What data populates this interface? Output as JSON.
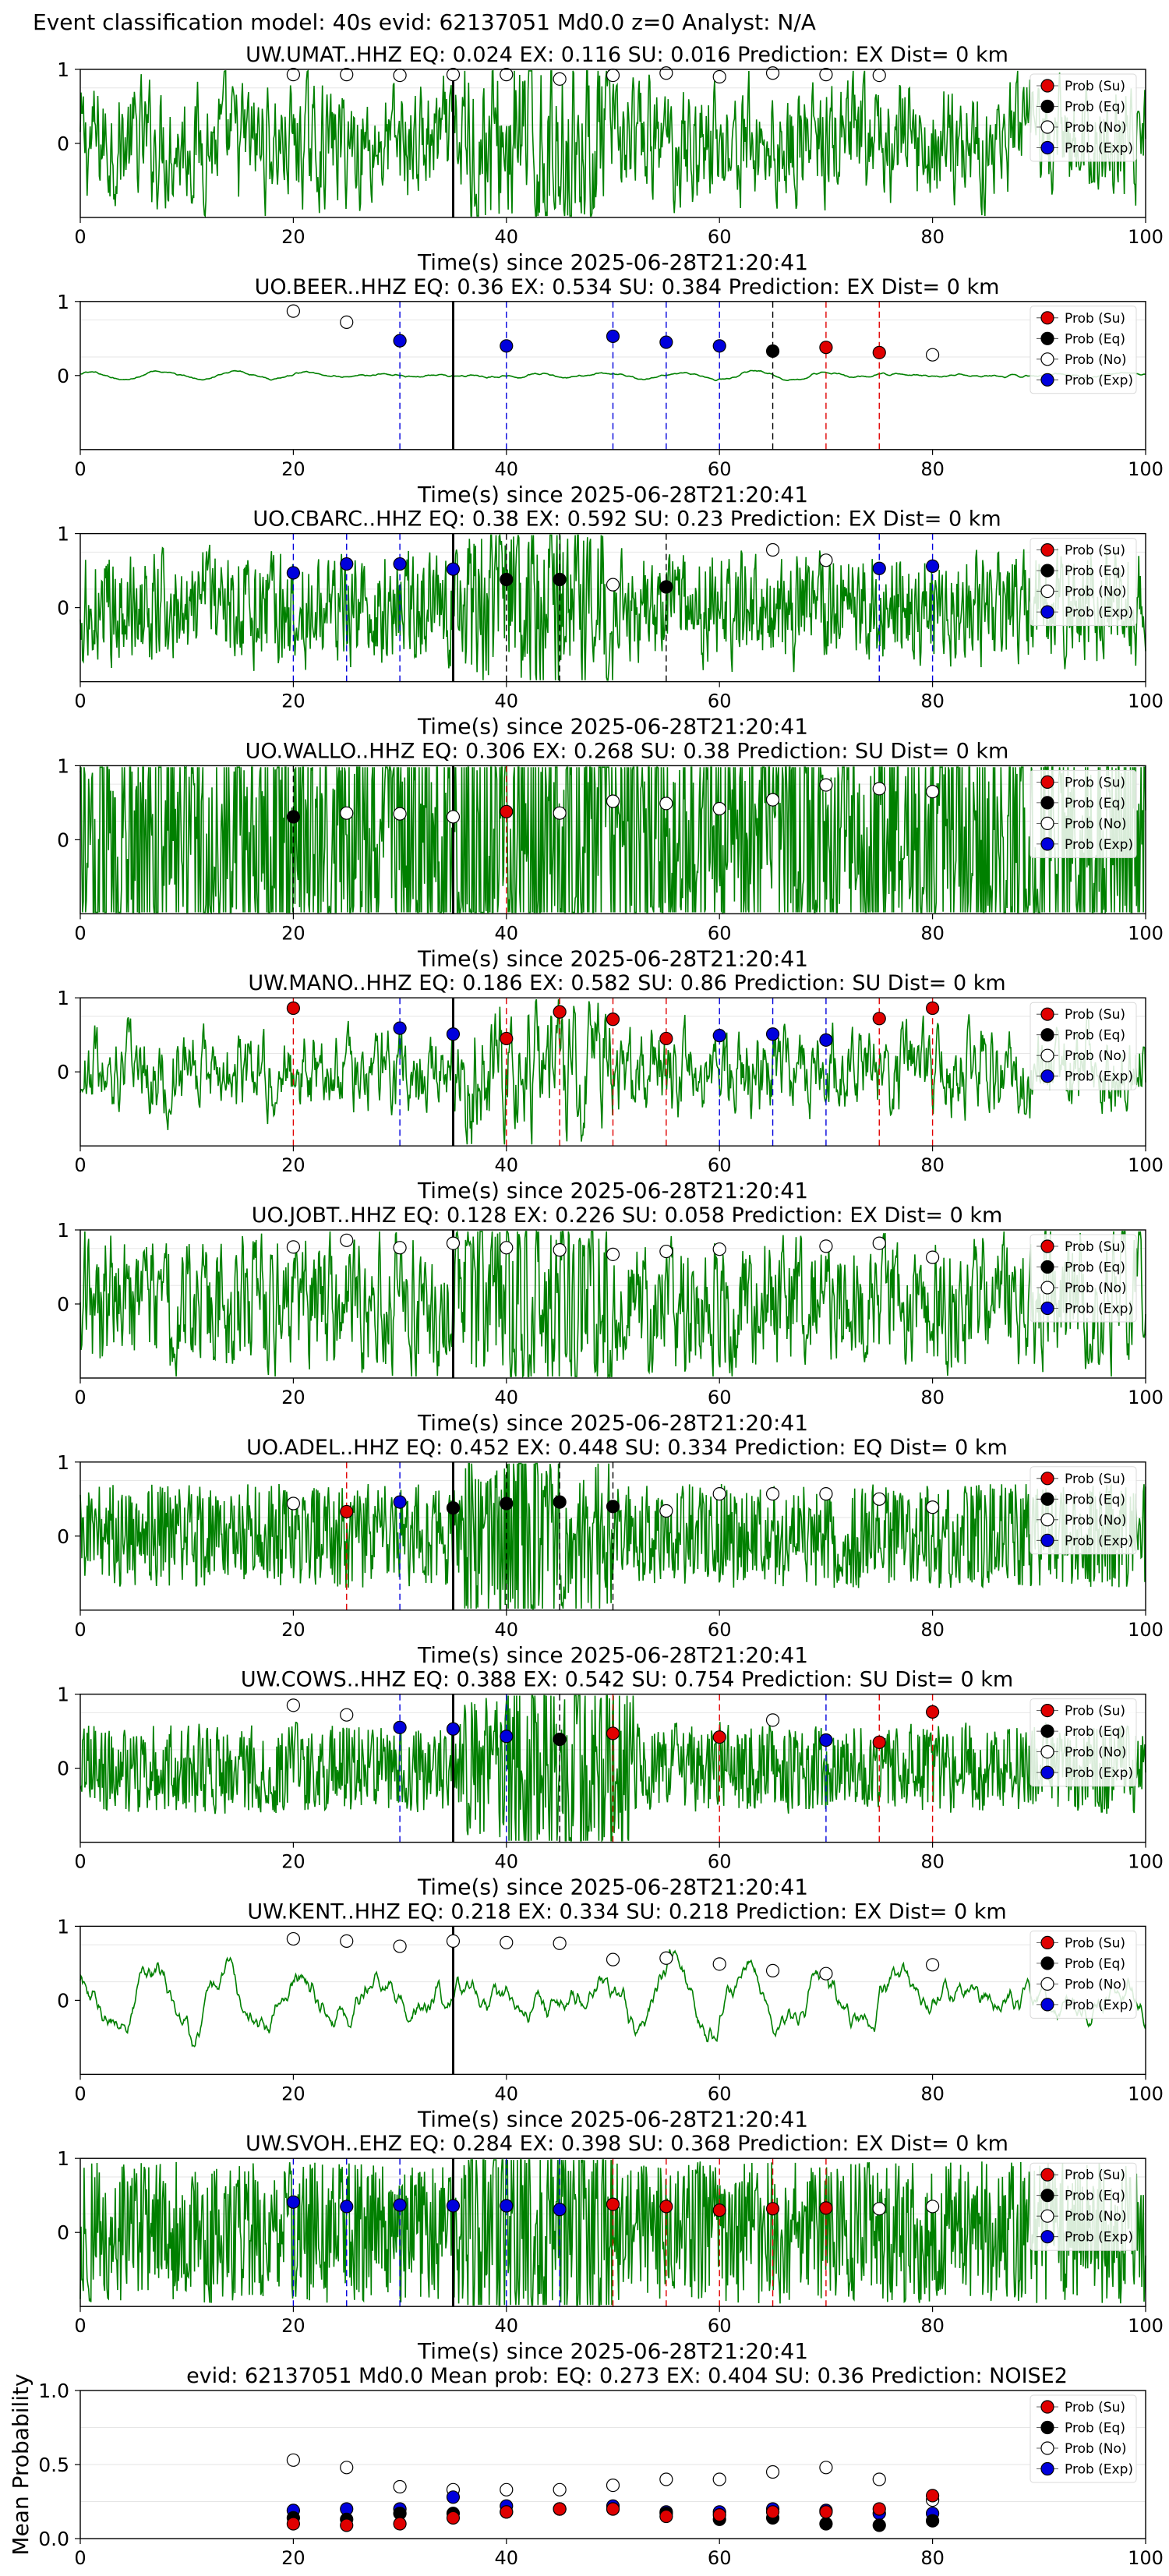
{
  "figure_title": "Event classification model: 40s evid: 62137051 Md0.0 z=0 Analyst: N/A",
  "legend": [
    {
      "label": "Prob (Su)",
      "color": "#e00000",
      "hollow": false
    },
    {
      "label": "Prob (Eq)",
      "color": "#000000",
      "hollow": false
    },
    {
      "label": "Prob (No)",
      "color": "#ffffff",
      "hollow": true
    },
    {
      "label": "Prob (Exp)",
      "color": "#0000dd",
      "hollow": false
    }
  ],
  "colors": {
    "trace": "#008000",
    "su": "#e00000",
    "eq": "#000000",
    "exp": "#0000dd",
    "origin_line": "#000000"
  },
  "chart_data": [
    {
      "type": "line",
      "station": "UW.UMAT..HHZ",
      "title": "UW.UMAT..HHZ   EQ: 0.024  EX: 0.116  SU: 0.016   Prediction: EX    Dist= 0 km",
      "xlabel": "Time(s) since 2025-06-28T21:20:41",
      "xlim": [
        0,
        100
      ],
      "ylim": [
        -1,
        1
      ],
      "x_ticks": [
        0,
        20,
        40,
        60,
        80,
        100
      ],
      "y_ticks": [
        0,
        1
      ],
      "origin_time": 35,
      "amp": 0.38,
      "smooth": 0.35,
      "points": [
        {
          "x": 20,
          "y": 0.93,
          "c": "no"
        },
        {
          "x": 25,
          "y": 0.93,
          "c": "no"
        },
        {
          "x": 30,
          "y": 0.92,
          "c": "no"
        },
        {
          "x": 35,
          "y": 0.93,
          "c": "no"
        },
        {
          "x": 40,
          "y": 0.93,
          "c": "no"
        },
        {
          "x": 45,
          "y": 0.87,
          "c": "no"
        },
        {
          "x": 50,
          "y": 0.92,
          "c": "no"
        },
        {
          "x": 55,
          "y": 0.95,
          "c": "no"
        },
        {
          "x": 60,
          "y": 0.9,
          "c": "no"
        },
        {
          "x": 65,
          "y": 0.95,
          "c": "no"
        },
        {
          "x": 70,
          "y": 0.93,
          "c": "no"
        },
        {
          "x": 75,
          "y": 0.92,
          "c": "no"
        }
      ]
    },
    {
      "type": "line",
      "station": "UO.BEER..HHZ",
      "title": "UO.BEER..HHZ   EQ: 0.36  EX: 0.534  SU: 0.384   Prediction: EX    Dist= 0 km",
      "xlabel": "Time(s) since 2025-06-28T21:20:41",
      "xlim": [
        0,
        100
      ],
      "ylim": [
        -1,
        1
      ],
      "x_ticks": [
        0,
        20,
        40,
        60,
        80,
        100
      ],
      "y_ticks": [
        0,
        1
      ],
      "origin_time": 35,
      "amp": 0.05,
      "smooth": 0.9,
      "points": [
        {
          "x": 20,
          "y": 0.87,
          "c": "no"
        },
        {
          "x": 25,
          "y": 0.72,
          "c": "no"
        },
        {
          "x": 30,
          "y": 0.47,
          "c": "exp"
        },
        {
          "x": 40,
          "y": 0.4,
          "c": "exp"
        },
        {
          "x": 50,
          "y": 0.53,
          "c": "exp"
        },
        {
          "x": 55,
          "y": 0.45,
          "c": "exp"
        },
        {
          "x": 60,
          "y": 0.4,
          "c": "exp"
        },
        {
          "x": 65,
          "y": 0.33,
          "c": "eq"
        },
        {
          "x": 70,
          "y": 0.38,
          "c": "su"
        },
        {
          "x": 75,
          "y": 0.31,
          "c": "su"
        },
        {
          "x": 80,
          "y": 0.28,
          "c": "no"
        }
      ]
    },
    {
      "type": "line",
      "station": "UO.CBARC..HHZ",
      "title": "UO.CBARC..HHZ   EQ: 0.38  EX: 0.592  SU: 0.23   Prediction: EX    Dist= 0 km",
      "xlabel": "Time(s) since 2025-06-28T21:20:41",
      "xlim": [
        0,
        100
      ],
      "ylim": [
        -1,
        1
      ],
      "x_ticks": [
        0,
        20,
        40,
        60,
        80,
        100
      ],
      "y_ticks": [
        0,
        1
      ],
      "origin_time": 35,
      "amp": 0.3,
      "smooth": 0.2,
      "points": [
        {
          "x": 20,
          "y": 0.47,
          "c": "exp"
        },
        {
          "x": 25,
          "y": 0.59,
          "c": "exp"
        },
        {
          "x": 30,
          "y": 0.59,
          "c": "exp"
        },
        {
          "x": 35,
          "y": 0.52,
          "c": "exp"
        },
        {
          "x": 40,
          "y": 0.38,
          "c": "eq"
        },
        {
          "x": 45,
          "y": 0.38,
          "c": "eq"
        },
        {
          "x": 50,
          "y": 0.31,
          "c": "no"
        },
        {
          "x": 55,
          "y": 0.28,
          "c": "eq"
        },
        {
          "x": 65,
          "y": 0.78,
          "c": "no"
        },
        {
          "x": 70,
          "y": 0.64,
          "c": "no"
        },
        {
          "x": 75,
          "y": 0.53,
          "c": "exp"
        },
        {
          "x": 80,
          "y": 0.56,
          "c": "exp"
        }
      ]
    },
    {
      "type": "line",
      "station": "UO.WALLO..HHZ",
      "title": "UO.WALLO..HHZ   EQ: 0.306  EX: 0.268  SU: 0.38   Prediction: SU    Dist= 0 km",
      "xlabel": "Time(s) since 2025-06-28T21:20:41",
      "xlim": [
        0,
        100
      ],
      "ylim": [
        -1,
        1
      ],
      "x_ticks": [
        0,
        20,
        40,
        60,
        80,
        100
      ],
      "y_ticks": [
        0,
        1
      ],
      "origin_time": 35,
      "amp": 0.55,
      "smooth": 0.0,
      "points": [
        {
          "x": 20,
          "y": 0.31,
          "c": "eq"
        },
        {
          "x": 25,
          "y": 0.36,
          "c": "no"
        },
        {
          "x": 30,
          "y": 0.35,
          "c": "no"
        },
        {
          "x": 35,
          "y": 0.31,
          "c": "no"
        },
        {
          "x": 40,
          "y": 0.38,
          "c": "su"
        },
        {
          "x": 45,
          "y": 0.36,
          "c": "no"
        },
        {
          "x": 50,
          "y": 0.52,
          "c": "no"
        },
        {
          "x": 55,
          "y": 0.49,
          "c": "no"
        },
        {
          "x": 60,
          "y": 0.42,
          "c": "no"
        },
        {
          "x": 65,
          "y": 0.54,
          "c": "no"
        },
        {
          "x": 70,
          "y": 0.74,
          "c": "no"
        },
        {
          "x": 75,
          "y": 0.69,
          "c": "no"
        },
        {
          "x": 80,
          "y": 0.65,
          "c": "no"
        }
      ]
    },
    {
      "type": "line",
      "station": "UW.MANO..HHZ",
      "title": "UW.MANO..HHZ   EQ: 0.186  EX: 0.582  SU: 0.86   Prediction: SU    Dist= 0 km",
      "xlabel": "Time(s) since 2025-06-28T21:20:41",
      "xlim": [
        0,
        100
      ],
      "ylim": [
        -1,
        1
      ],
      "x_ticks": [
        0,
        20,
        40,
        60,
        80,
        100
      ],
      "y_ticks": [
        0,
        1
      ],
      "origin_time": 35,
      "amp": 0.3,
      "smooth": 0.45,
      "points": [
        {
          "x": 20,
          "y": 0.86,
          "c": "su"
        },
        {
          "x": 30,
          "y": 0.59,
          "c": "exp"
        },
        {
          "x": 35,
          "y": 0.51,
          "c": "exp"
        },
        {
          "x": 40,
          "y": 0.45,
          "c": "su"
        },
        {
          "x": 45,
          "y": 0.81,
          "c": "su"
        },
        {
          "x": 50,
          "y": 0.71,
          "c": "su"
        },
        {
          "x": 55,
          "y": 0.45,
          "c": "su"
        },
        {
          "x": 60,
          "y": 0.49,
          "c": "exp"
        },
        {
          "x": 65,
          "y": 0.51,
          "c": "exp"
        },
        {
          "x": 70,
          "y": 0.43,
          "c": "exp"
        },
        {
          "x": 75,
          "y": 0.72,
          "c": "su"
        },
        {
          "x": 80,
          "y": 0.86,
          "c": "su"
        }
      ]
    },
    {
      "type": "line",
      "station": "UO.JOBT..HHZ",
      "title": "UO.JOBT..HHZ   EQ: 0.128  EX: 0.226  SU: 0.058   Prediction: EX    Dist= 0 km",
      "xlabel": "Time(s) since 2025-06-28T21:20:41",
      "xlim": [
        0,
        100
      ],
      "ylim": [
        -1,
        1
      ],
      "x_ticks": [
        0,
        20,
        40,
        60,
        80,
        100
      ],
      "y_ticks": [
        0,
        1
      ],
      "origin_time": 35,
      "amp": 0.4,
      "smooth": 0.3,
      "points": [
        {
          "x": 20,
          "y": 0.77,
          "c": "no"
        },
        {
          "x": 25,
          "y": 0.86,
          "c": "no"
        },
        {
          "x": 30,
          "y": 0.76,
          "c": "no"
        },
        {
          "x": 35,
          "y": 0.82,
          "c": "no"
        },
        {
          "x": 40,
          "y": 0.76,
          "c": "no"
        },
        {
          "x": 45,
          "y": 0.73,
          "c": "no"
        },
        {
          "x": 50,
          "y": 0.67,
          "c": "no"
        },
        {
          "x": 55,
          "y": 0.71,
          "c": "no"
        },
        {
          "x": 60,
          "y": 0.74,
          "c": "no"
        },
        {
          "x": 70,
          "y": 0.78,
          "c": "no"
        },
        {
          "x": 75,
          "y": 0.82,
          "c": "no"
        },
        {
          "x": 80,
          "y": 0.63,
          "c": "no"
        }
      ]
    },
    {
      "type": "line",
      "station": "UO.ADEL..HHZ",
      "title": "UO.ADEL..HHZ   EQ: 0.452  EX: 0.448  SU: 0.334   Prediction: EQ    Dist= 0 km",
      "xlabel": "Time(s) since 2025-06-28T21:20:41",
      "xlim": [
        0,
        100
      ],
      "ylim": [
        -1,
        1
      ],
      "x_ticks": [
        0,
        20,
        40,
        60,
        80,
        100
      ],
      "y_ticks": [
        0,
        1
      ],
      "origin_time": 35,
      "amp": 0.22,
      "smooth": 0.0,
      "points": [
        {
          "x": 20,
          "y": 0.44,
          "c": "no"
        },
        {
          "x": 25,
          "y": 0.33,
          "c": "su"
        },
        {
          "x": 30,
          "y": 0.46,
          "c": "exp"
        },
        {
          "x": 35,
          "y": 0.38,
          "c": "eq"
        },
        {
          "x": 40,
          "y": 0.44,
          "c": "eq"
        },
        {
          "x": 45,
          "y": 0.46,
          "c": "eq"
        },
        {
          "x": 50,
          "y": 0.4,
          "c": "eq"
        },
        {
          "x": 55,
          "y": 0.34,
          "c": "no"
        },
        {
          "x": 60,
          "y": 0.57,
          "c": "no"
        },
        {
          "x": 65,
          "y": 0.57,
          "c": "no"
        },
        {
          "x": 70,
          "y": 0.57,
          "c": "no"
        },
        {
          "x": 75,
          "y": 0.5,
          "c": "no"
        },
        {
          "x": 80,
          "y": 0.39,
          "c": "no"
        }
      ]
    },
    {
      "type": "line",
      "station": "UW.COWS..HHZ",
      "title": "UW.COWS..HHZ   EQ: 0.388  EX: 0.542  SU: 0.754   Prediction: SU    Dist= 0 km",
      "xlabel": "Time(s) since 2025-06-28T21:20:41",
      "xlim": [
        0,
        100
      ],
      "ylim": [
        -1,
        1
      ],
      "x_ticks": [
        0,
        20,
        40,
        60,
        80,
        100
      ],
      "y_ticks": [
        0,
        1
      ],
      "origin_time": 35,
      "amp": 0.2,
      "smooth": 0.05,
      "points": [
        {
          "x": 20,
          "y": 0.85,
          "c": "no"
        },
        {
          "x": 25,
          "y": 0.72,
          "c": "no"
        },
        {
          "x": 30,
          "y": 0.55,
          "c": "exp"
        },
        {
          "x": 35,
          "y": 0.53,
          "c": "exp"
        },
        {
          "x": 40,
          "y": 0.43,
          "c": "exp"
        },
        {
          "x": 45,
          "y": 0.39,
          "c": "eq"
        },
        {
          "x": 50,
          "y": 0.47,
          "c": "su"
        },
        {
          "x": 60,
          "y": 0.42,
          "c": "su"
        },
        {
          "x": 65,
          "y": 0.65,
          "c": "no"
        },
        {
          "x": 70,
          "y": 0.38,
          "c": "exp"
        },
        {
          "x": 75,
          "y": 0.35,
          "c": "su"
        },
        {
          "x": 80,
          "y": 0.76,
          "c": "su"
        }
      ]
    },
    {
      "type": "line",
      "station": "UW.KENT..HHZ",
      "title": "UW.KENT..HHZ   EQ: 0.218  EX: 0.334  SU: 0.218   Prediction: EX    Dist= 0 km",
      "xlabel": "Time(s) since 2025-06-28T21:20:41",
      "xlim": [
        0,
        100
      ],
      "ylim": [
        -1,
        1
      ],
      "x_ticks": [
        0,
        20,
        40,
        60,
        80,
        100
      ],
      "y_ticks": [
        0,
        1
      ],
      "origin_time": 35,
      "amp": 0.42,
      "smooth": 0.85,
      "points": [
        {
          "x": 20,
          "y": 0.83,
          "c": "no"
        },
        {
          "x": 25,
          "y": 0.8,
          "c": "no"
        },
        {
          "x": 30,
          "y": 0.73,
          "c": "no"
        },
        {
          "x": 35,
          "y": 0.8,
          "c": "no"
        },
        {
          "x": 40,
          "y": 0.78,
          "c": "no"
        },
        {
          "x": 45,
          "y": 0.77,
          "c": "no"
        },
        {
          "x": 50,
          "y": 0.55,
          "c": "no"
        },
        {
          "x": 55,
          "y": 0.57,
          "c": "no"
        },
        {
          "x": 60,
          "y": 0.49,
          "c": "no"
        },
        {
          "x": 65,
          "y": 0.4,
          "c": "no"
        },
        {
          "x": 70,
          "y": 0.36,
          "c": "no"
        },
        {
          "x": 80,
          "y": 0.48,
          "c": "no"
        }
      ]
    },
    {
      "type": "line",
      "station": "UW.SVOH..EHZ",
      "title": "UW.SVOH..EHZ   EQ: 0.284  EX: 0.398  SU: 0.368   Prediction: EX    Dist= 0 km",
      "xlabel": "Time(s) since 2025-06-28T21:20:41",
      "xlim": [
        0,
        100
      ],
      "ylim": [
        -1,
        1
      ],
      "x_ticks": [
        0,
        20,
        40,
        60,
        80,
        100
      ],
      "y_ticks": [
        0,
        1
      ],
      "origin_time": 35,
      "amp": 0.3,
      "smooth": 0.0,
      "points": [
        {
          "x": 20,
          "y": 0.41,
          "c": "exp"
        },
        {
          "x": 25,
          "y": 0.35,
          "c": "exp"
        },
        {
          "x": 30,
          "y": 0.37,
          "c": "exp"
        },
        {
          "x": 35,
          "y": 0.36,
          "c": "exp"
        },
        {
          "x": 40,
          "y": 0.36,
          "c": "exp"
        },
        {
          "x": 45,
          "y": 0.31,
          "c": "exp"
        },
        {
          "x": 50,
          "y": 0.38,
          "c": "su"
        },
        {
          "x": 55,
          "y": 0.35,
          "c": "su"
        },
        {
          "x": 60,
          "y": 0.3,
          "c": "su"
        },
        {
          "x": 65,
          "y": 0.32,
          "c": "su"
        },
        {
          "x": 70,
          "y": 0.33,
          "c": "su"
        },
        {
          "x": 75,
          "y": 0.32,
          "c": "no"
        },
        {
          "x": 80,
          "y": 0.35,
          "c": "no"
        }
      ]
    },
    {
      "type": "scatter",
      "title": "evid: 62137051  Md0.0   Mean prob:   EQ: 0.273  EX: 0.404  SU: 0.36   Prediction: NOISE2",
      "ylabel": "Mean Probability",
      "xlim": [
        0,
        100
      ],
      "ylim": [
        0,
        1
      ],
      "x_ticks": [
        0,
        20,
        40,
        60,
        80,
        100
      ],
      "y_ticks": [
        0.0,
        0.5,
        1.0
      ],
      "grid_y": [
        0.25,
        0.5,
        0.75
      ],
      "x": [
        20,
        25,
        30,
        35,
        40,
        45,
        50,
        55,
        60,
        65,
        70,
        75,
        80
      ],
      "series": [
        {
          "name": "Prob (No)",
          "key": "no",
          "values": [
            0.53,
            0.48,
            0.35,
            0.33,
            0.33,
            0.33,
            0.36,
            0.4,
            0.4,
            0.45,
            0.48,
            0.4,
            0.26
          ]
        },
        {
          "name": "Prob (Exp)",
          "key": "exp",
          "values": [
            0.19,
            0.2,
            0.2,
            0.28,
            0.22,
            0.2,
            0.22,
            0.18,
            0.18,
            0.2,
            0.19,
            0.17,
            0.17
          ]
        },
        {
          "name": "Prob (Eq)",
          "key": "eq",
          "values": [
            0.14,
            0.13,
            0.17,
            0.17,
            0.18,
            0.2,
            0.2,
            0.17,
            0.13,
            0.14,
            0.1,
            0.09,
            0.12
          ]
        },
        {
          "name": "Prob (Su)",
          "key": "su",
          "values": [
            0.1,
            0.09,
            0.1,
            0.14,
            0.18,
            0.2,
            0.2,
            0.15,
            0.16,
            0.18,
            0.18,
            0.2,
            0.29
          ]
        }
      ]
    }
  ]
}
